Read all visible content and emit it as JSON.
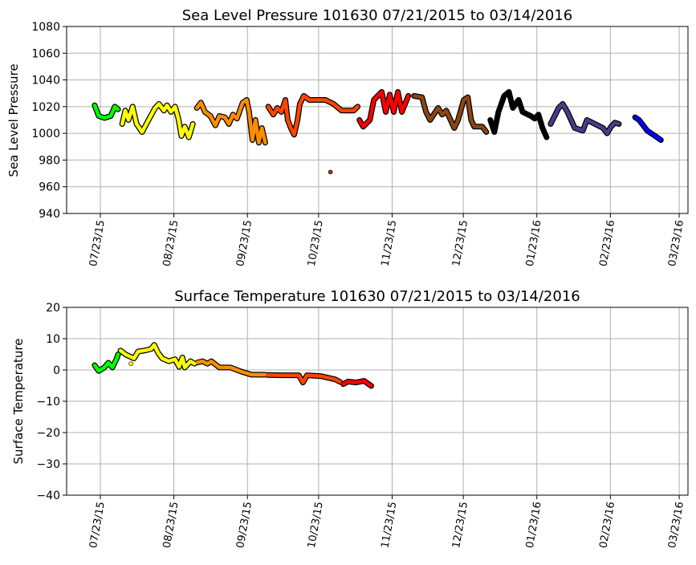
{
  "chart_data": [
    {
      "type": "scatter",
      "title": "Sea Level Pressure 101630  07/21/2015 to 03/14/2016",
      "xlabel": "",
      "ylabel": "Sea Level Pressure",
      "x_units": "days since 07/23/15",
      "xlim": [
        -14.2,
        247.7
      ],
      "ylim": [
        940,
        1080
      ],
      "grid": true,
      "yticks": [
        940,
        960,
        980,
        1000,
        1020,
        1040,
        1060,
        1080
      ],
      "ytick_labels": [
        "940",
        "960",
        "980",
        "1000",
        "1020",
        "1040",
        "1060",
        "1080"
      ],
      "xticks": [
        0,
        31,
        62,
        92,
        123,
        153,
        184,
        215,
        244
      ],
      "xtick_labels": [
        "07/23/15",
        "08/23/15",
        "09/23/15",
        "10/23/15",
        "11/23/15",
        "12/23/15",
        "01/23/16",
        "02/23/16",
        "03/23/16"
      ],
      "series": [
        {
          "name": "green",
          "color": "#00ff00",
          "points": [
            [
              -2.4,
              1021
            ],
            [
              -0.7,
              1013
            ],
            [
              1.7,
              1011.5
            ],
            [
              4.4,
              1013
            ],
            [
              6.1,
              1020
            ],
            [
              7.5,
              1018
            ]
          ]
        },
        {
          "name": "yellow",
          "color": "#ffff00",
          "points": [
            [
              9.2,
              1007
            ],
            [
              10.5,
              1017
            ],
            [
              11.9,
              1010
            ],
            [
              13.6,
              1020
            ],
            [
              15.3,
              1007
            ],
            [
              17.6,
              1001
            ],
            [
              20.3,
              1010
            ],
            [
              23.1,
              1019
            ],
            [
              24.7,
              1022
            ],
            [
              26.8,
              1017
            ],
            [
              28.1,
              1021
            ],
            [
              29.8,
              1016
            ],
            [
              31.5,
              1020
            ],
            [
              32.9,
              1011
            ],
            [
              34.2,
              998
            ],
            [
              35.6,
              1005
            ],
            [
              37.3,
              997
            ],
            [
              39,
              1007
            ]
          ]
        },
        {
          "name": "orange",
          "color": "#ff8c00",
          "points": [
            [
              40.7,
              1019
            ],
            [
              42.4,
              1023
            ],
            [
              44.1,
              1016
            ],
            [
              46.4,
              1013
            ],
            [
              48.5,
              1006
            ],
            [
              50.2,
              1013
            ],
            [
              52.5,
              1012
            ],
            [
              54.2,
              1007
            ],
            [
              55.9,
              1014
            ],
            [
              57.6,
              1011
            ],
            [
              60,
              1023
            ],
            [
              61.7,
              1025
            ],
            [
              62.7,
              1016
            ],
            [
              64.1,
              995
            ],
            [
              65.4,
              1010
            ],
            [
              66.8,
              993
            ],
            [
              68.1,
              1004
            ],
            [
              69.5,
              993
            ]
          ]
        },
        {
          "name": "orangered",
          "color": "#ff4500",
          "points": [
            [
              70.8,
              1020
            ],
            [
              72.9,
              1014
            ],
            [
              74.6,
              1019
            ],
            [
              76.3,
              1016
            ],
            [
              78,
              1025
            ],
            [
              79,
              1010
            ],
            [
              80.3,
              1004
            ],
            [
              81.7,
              999
            ],
            [
              83.1,
              1010
            ],
            [
              84.1,
              1022
            ],
            [
              85.8,
              1028
            ],
            [
              88.1,
              1025
            ],
            [
              91.5,
              1025
            ],
            [
              94.9,
              1025
            ],
            [
              98.3,
              1022
            ],
            [
              101.7,
              1017
            ],
            [
              106.8,
              1017
            ],
            [
              108.5,
              1020
            ]
          ]
        },
        {
          "name": "red",
          "color": "#ff0000",
          "points": [
            [
              109.2,
              1010
            ],
            [
              110.8,
              1005
            ],
            [
              113.6,
              1010
            ],
            [
              115.3,
              1025
            ],
            [
              118.6,
              1031
            ],
            [
              120.3,
              1016
            ],
            [
              122,
              1029
            ],
            [
              123.7,
              1016
            ],
            [
              125.4,
              1031
            ],
            [
              127.1,
              1016
            ],
            [
              129.8,
              1028
            ]
          ]
        },
        {
          "name": "brown",
          "color": "#8b4513",
          "points": [
            [
              132.2,
              1028
            ],
            [
              135.6,
              1027
            ],
            [
              137.3,
              1016
            ],
            [
              139,
              1010
            ],
            [
              142.4,
              1019
            ],
            [
              144.1,
              1014
            ],
            [
              145.8,
              1017
            ],
            [
              149.2,
              1004
            ],
            [
              150.8,
              1010
            ],
            [
              153.2,
              1025
            ],
            [
              154.9,
              1027
            ],
            [
              156.3,
              1010
            ],
            [
              157.6,
              1005
            ],
            [
              161,
              1005
            ],
            [
              162.7,
              1001
            ]
          ]
        },
        {
          "name": "black",
          "color": "#000000",
          "points": [
            [
              164.4,
              1010
            ],
            [
              166.1,
              1001
            ],
            [
              167.8,
              1016
            ],
            [
              170.2,
              1028
            ],
            [
              172.2,
              1031
            ],
            [
              173.9,
              1019
            ],
            [
              176.3,
              1025
            ],
            [
              178,
              1016
            ],
            [
              181.4,
              1013
            ],
            [
              183.1,
              1011
            ],
            [
              184.7,
              1014
            ],
            [
              186.4,
              1004
            ],
            [
              188.1,
              997
            ]
          ]
        },
        {
          "name": "darkslateblue",
          "color": "#483d8b",
          "points": [
            [
              189.8,
              1007
            ],
            [
              193.2,
              1019
            ],
            [
              194.9,
              1022
            ],
            [
              196.9,
              1016
            ],
            [
              200,
              1004
            ],
            [
              203.4,
              1002
            ],
            [
              205.1,
              1010
            ],
            [
              208.5,
              1007
            ],
            [
              211.9,
              1004
            ],
            [
              213.6,
              1000
            ],
            [
              215.3,
              1005
            ],
            [
              216.9,
              1008
            ],
            [
              218.6,
              1007
            ]
          ]
        },
        {
          "name": "blue",
          "color": "#0000ff",
          "points": [
            [
              225.4,
              1012
            ],
            [
              227.1,
              1010
            ],
            [
              230.5,
              1002
            ],
            [
              233.9,
              998
            ],
            [
              236.3,
              995
            ]
          ]
        }
      ],
      "outliers": [
        {
          "color": "#8b4513",
          "point": [
            97,
            971
          ]
        }
      ]
    },
    {
      "type": "scatter",
      "title": "Surface Temperature 101630  07/21/2015 to 03/14/2016",
      "xlabel": "",
      "ylabel": "Surface Temperature",
      "x_units": "days since 07/23/15",
      "xlim": [
        -14.2,
        247.7
      ],
      "ylim": [
        -40,
        20
      ],
      "grid": true,
      "yticks": [
        -40,
        -30,
        -20,
        -10,
        0,
        10,
        20
      ],
      "ytick_labels": [
        "−40",
        "−30",
        "−20",
        "−10",
        "0",
        "10",
        "20"
      ],
      "xticks": [
        0,
        31,
        62,
        92,
        123,
        153,
        184,
        215,
        244
      ],
      "xtick_labels": [
        "07/23/15",
        "08/23/15",
        "09/23/15",
        "10/23/15",
        "11/23/15",
        "12/23/15",
        "01/23/16",
        "02/23/16",
        "03/23/16"
      ],
      "series": [
        {
          "name": "green",
          "color": "#00ff00",
          "points": [
            [
              -2.4,
              1.5
            ],
            [
              -0.7,
              -0.3
            ],
            [
              1.7,
              0.8
            ],
            [
              3.4,
              2.3
            ],
            [
              5.1,
              0.8
            ],
            [
              6.8,
              3.5
            ],
            [
              7.5,
              5
            ]
          ]
        },
        {
          "name": "yellow",
          "color": "#ffff00",
          "points": [
            [
              8.5,
              6.2
            ],
            [
              10.8,
              4.9
            ],
            [
              14.2,
              3.7
            ],
            [
              15.9,
              5.9
            ],
            [
              18.6,
              6.2
            ],
            [
              21.4,
              6.7
            ],
            [
              22.7,
              8
            ],
            [
              24.4,
              5.4
            ],
            [
              26.1,
              3.7
            ],
            [
              28.8,
              2.8
            ],
            [
              31.5,
              3.4
            ],
            [
              33.2,
              1
            ],
            [
              34.6,
              4
            ],
            [
              35.6,
              0.8
            ],
            [
              38,
              2.8
            ],
            [
              39.7,
              2
            ]
          ]
        },
        {
          "name": "orange",
          "color": "#ff8c00",
          "points": [
            [
              41,
              2.4
            ],
            [
              43.1,
              2.8
            ],
            [
              45.1,
              2
            ],
            [
              46.8,
              2.8
            ],
            [
              50.2,
              0.8
            ],
            [
              54.9,
              0.8
            ],
            [
              59.3,
              -0.5
            ],
            [
              63.7,
              -1.5
            ],
            [
              69.5,
              -1.5
            ]
          ]
        },
        {
          "name": "orangered",
          "color": "#ff4500",
          "points": [
            [
              70.5,
              -1.6
            ],
            [
              77.3,
              -1.7
            ],
            [
              83.7,
              -1.7
            ],
            [
              85.4,
              -4
            ],
            [
              87.1,
              -1.7
            ],
            [
              93.2,
              -2
            ],
            [
              99,
              -3
            ],
            [
              101,
              -3.8
            ]
          ]
        },
        {
          "name": "red",
          "color": "#ff0000",
          "points": [
            [
              102.4,
              -4.5
            ],
            [
              104.4,
              -3.7
            ],
            [
              107.8,
              -4
            ],
            [
              111.2,
              -3.5
            ],
            [
              114.2,
              -5.1
            ]
          ]
        }
      ],
      "outliers": [
        {
          "color": "#ffff00",
          "point": [
            12.9,
            2
          ]
        }
      ]
    }
  ]
}
